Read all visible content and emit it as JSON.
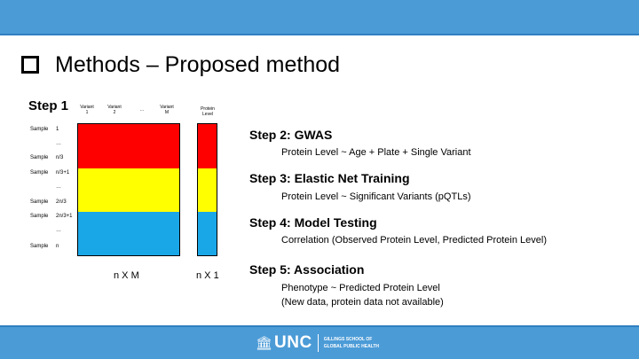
{
  "title": "Methods – Proposed method",
  "step1": {
    "label": "Step 1",
    "variant_cols": [
      {
        "line1": "Variant",
        "line2": "1"
      },
      {
        "line1": "Variant",
        "line2": "2"
      },
      {
        "line1": "...",
        "line2": ""
      },
      {
        "line1": "Variant",
        "line2": "M"
      }
    ],
    "protein_header": {
      "line1": "Protein",
      "line2": "Level"
    },
    "samples": [
      {
        "label": "Sample",
        "index": "1"
      },
      {
        "label": "",
        "index": "…"
      },
      {
        "label": "Sample",
        "index": "n/3"
      },
      {
        "label": "Sample",
        "index": "n/3+1"
      },
      {
        "label": "",
        "index": "…"
      },
      {
        "label": "Sample",
        "index": "2n/3"
      },
      {
        "label": "Sample",
        "index": "2n/3+1"
      },
      {
        "label": "",
        "index": "…"
      },
      {
        "label": "Sample",
        "index": "n"
      }
    ],
    "matrix_dim": "n X M",
    "protein_dim": "n X 1",
    "colors": {
      "red": "#ff0000",
      "yellow": "#ffff00",
      "blue": "#1aa7e8"
    }
  },
  "steps": [
    {
      "heading": "Step 2: GWAS",
      "lines": [
        "Protein Level ~ Age + Plate + Single Variant"
      ]
    },
    {
      "heading": "Step 3: Elastic Net Training",
      "lines": [
        "Protein Level ~ Significant Variants (pQTLs)"
      ]
    },
    {
      "heading": "Step 4: Model Testing",
      "lines": [
        "Correlation (Observed Protein Level, Predicted Protein Level)"
      ]
    },
    {
      "heading": "Step 5: Association",
      "lines": [
        "Phenotype ~ Predicted Protein Level",
        "(New data, protein data not available)"
      ]
    }
  ],
  "footer": {
    "logo_icon": "well-icon",
    "logo_text": "UNC",
    "school_line1": "GILLINGS SCHOOL OF",
    "school_line2": "GLOBAL PUBLIC HEALTH",
    "bar_color": "#4b9bd7"
  }
}
